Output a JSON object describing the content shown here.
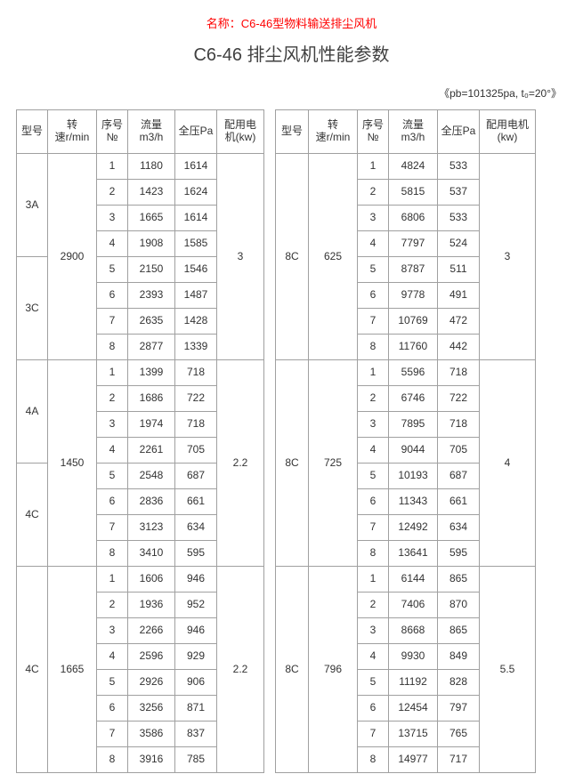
{
  "titles": {
    "red": "名称：C6-46型物料输送排尘风机",
    "main": "C6-46 排尘风机性能参数",
    "note": "《pb=101325pa, t₀=20°》"
  },
  "headers": {
    "model": "型号",
    "speed_l1": "转",
    "speed_l2": "速r/min",
    "no_l1": "序号",
    "no_l2": "№",
    "flow_l1": "流量",
    "flow_l2": "m3/h",
    "press": "全压Pa",
    "motor_l1": "配用电",
    "motor_l2": "机(kw)",
    "motor_r_l1": "配用电机",
    "motor_r_l2": "(kw)"
  },
  "left": [
    {
      "model": "3A",
      "model_span": 4,
      "speed": "2900",
      "speed_span": 8,
      "motor": "3",
      "motor_span": 8,
      "rows": [
        [
          "1",
          "1180",
          "1614"
        ],
        [
          "2",
          "1423",
          "1624"
        ],
        [
          "3",
          "1665",
          "1614"
        ],
        [
          "4",
          "1908",
          "1585"
        ]
      ]
    },
    {
      "model": "3C",
      "model_span": 4,
      "rows": [
        [
          "5",
          "2150",
          "1546"
        ],
        [
          "6",
          "2393",
          "1487"
        ],
        [
          "7",
          "2635",
          "1428"
        ],
        [
          "8",
          "2877",
          "1339"
        ]
      ]
    },
    {
      "model": "4A",
      "model_span": 4,
      "speed": "1450",
      "speed_span": 8,
      "motor": "2.2",
      "motor_span": 8,
      "rows": [
        [
          "1",
          "1399",
          "718"
        ],
        [
          "2",
          "1686",
          "722"
        ],
        [
          "3",
          "1974",
          "718"
        ],
        [
          "4",
          "2261",
          "705"
        ]
      ]
    },
    {
      "model": "4C",
      "model_span": 4,
      "rows": [
        [
          "5",
          "2548",
          "687"
        ],
        [
          "6",
          "2836",
          "661"
        ],
        [
          "7",
          "3123",
          "634"
        ],
        [
          "8",
          "3410",
          "595"
        ]
      ]
    },
    {
      "model": "4C",
      "model_span": 8,
      "speed": "1665",
      "speed_span": 8,
      "motor": "2.2",
      "motor_span": 8,
      "rows": [
        [
          "1",
          "1606",
          "946"
        ],
        [
          "2",
          "1936",
          "952"
        ],
        [
          "3",
          "2266",
          "946"
        ],
        [
          "4",
          "2596",
          "929"
        ],
        [
          "5",
          "2926",
          "906"
        ],
        [
          "6",
          "3256",
          "871"
        ],
        [
          "7",
          "3586",
          "837"
        ],
        [
          "8",
          "3916",
          "785"
        ]
      ]
    }
  ],
  "right": [
    {
      "model": "8C",
      "model_span": 8,
      "speed": "625",
      "speed_span": 8,
      "motor": "3",
      "motor_span": 8,
      "rows": [
        [
          "1",
          "4824",
          "533"
        ],
        [
          "2",
          "5815",
          "537"
        ],
        [
          "3",
          "6806",
          "533"
        ],
        [
          "4",
          "7797",
          "524"
        ],
        [
          "5",
          "8787",
          "511"
        ],
        [
          "6",
          "9778",
          "491"
        ],
        [
          "7",
          "10769",
          "472"
        ],
        [
          "8",
          "11760",
          "442"
        ]
      ]
    },
    {
      "model": "8C",
      "model_span": 8,
      "speed": "725",
      "speed_span": 8,
      "motor": "4",
      "motor_span": 8,
      "rows": [
        [
          "1",
          "5596",
          "718"
        ],
        [
          "2",
          "6746",
          "722"
        ],
        [
          "3",
          "7895",
          "718"
        ],
        [
          "4",
          "9044",
          "705"
        ],
        [
          "5",
          "10193",
          "687"
        ],
        [
          "6",
          "11343",
          "661"
        ],
        [
          "7",
          "12492",
          "634"
        ],
        [
          "8",
          "13641",
          "595"
        ]
      ]
    },
    {
      "model": "8C",
      "model_span": 8,
      "speed": "796",
      "speed_span": 8,
      "motor": "5.5",
      "motor_span": 8,
      "rows": [
        [
          "1",
          "6144",
          "865"
        ],
        [
          "2",
          "7406",
          "870"
        ],
        [
          "3",
          "8668",
          "865"
        ],
        [
          "4",
          "9930",
          "849"
        ],
        [
          "5",
          "11192",
          "828"
        ],
        [
          "6",
          "12454",
          "797"
        ],
        [
          "7",
          "13715",
          "765"
        ],
        [
          "8",
          "14977",
          "717"
        ]
      ]
    }
  ]
}
